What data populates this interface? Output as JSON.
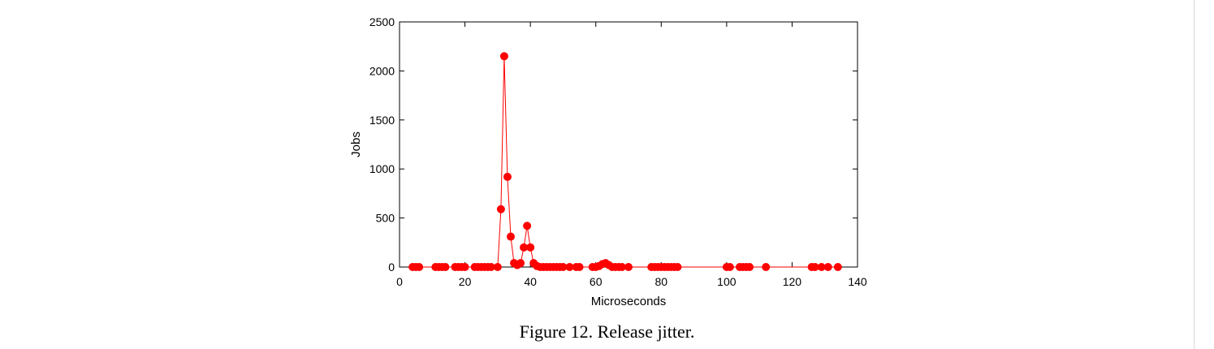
{
  "caption": "Figure 12. Release jitter.",
  "chart_data": {
    "type": "line",
    "title": "",
    "xlabel": "Microseconds",
    "ylabel": "Jobs",
    "xlim": [
      0,
      140
    ],
    "ylim": [
      0,
      2500
    ],
    "xticks": [
      0,
      20,
      40,
      60,
      80,
      100,
      120,
      140
    ],
    "yticks": [
      0,
      500,
      1000,
      1500,
      2000,
      2500
    ],
    "grid": false,
    "marker": "circle",
    "series": [
      {
        "color": "#ff0000",
        "x": [
          4,
          5,
          6,
          11,
          12,
          13,
          14,
          17,
          18,
          19,
          20,
          23,
          24,
          25,
          26,
          27,
          28,
          30,
          31,
          32,
          33,
          34,
          35,
          36,
          37,
          38,
          39,
          40,
          41,
          42,
          43,
          44,
          45,
          46,
          47,
          48,
          49,
          50,
          52,
          54,
          55,
          59,
          60,
          61,
          62,
          63,
          64,
          65,
          66,
          67,
          68,
          70,
          77,
          78,
          79,
          80,
          81,
          82,
          83,
          84,
          85,
          100,
          101,
          104,
          105,
          106,
          107,
          112,
          126,
          127,
          129,
          131,
          134
        ],
        "y": [
          0,
          0,
          0,
          0,
          0,
          0,
          0,
          0,
          0,
          0,
          0,
          0,
          0,
          0,
          0,
          0,
          0,
          0,
          590,
          2150,
          920,
          310,
          40,
          20,
          40,
          200,
          420,
          200,
          40,
          10,
          0,
          0,
          0,
          0,
          0,
          0,
          0,
          0,
          0,
          0,
          0,
          0,
          0,
          10,
          30,
          40,
          20,
          0,
          0,
          0,
          0,
          0,
          0,
          0,
          0,
          0,
          0,
          0,
          0,
          0,
          0,
          0,
          0,
          0,
          0,
          0,
          0,
          0,
          0,
          0,
          0,
          0,
          0
        ]
      }
    ]
  }
}
